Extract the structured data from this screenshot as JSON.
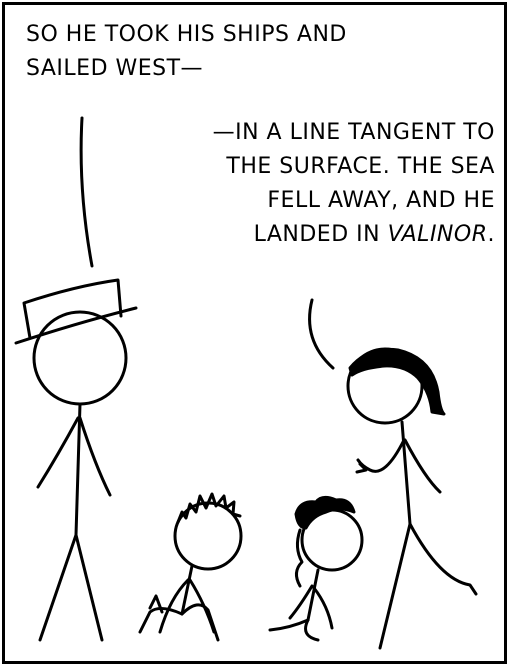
{
  "comic": {
    "speech_1": {
      "line_1": "SO HE TOOK HIS SHIPS AND",
      "line_2": "SAILED WEST—"
    },
    "speech_2": {
      "line_1": "—IN A LINE TANGENT TO",
      "line_2": "THE SURFACE. THE SEA",
      "line_3": "FELL AWAY, AND HE",
      "line_4_prefix": "LANDED IN ",
      "line_4_emphasis": "VALINOR",
      "line_4_suffix": "."
    },
    "colors": {
      "ink": "#000000",
      "paper": "#ffffff"
    }
  }
}
